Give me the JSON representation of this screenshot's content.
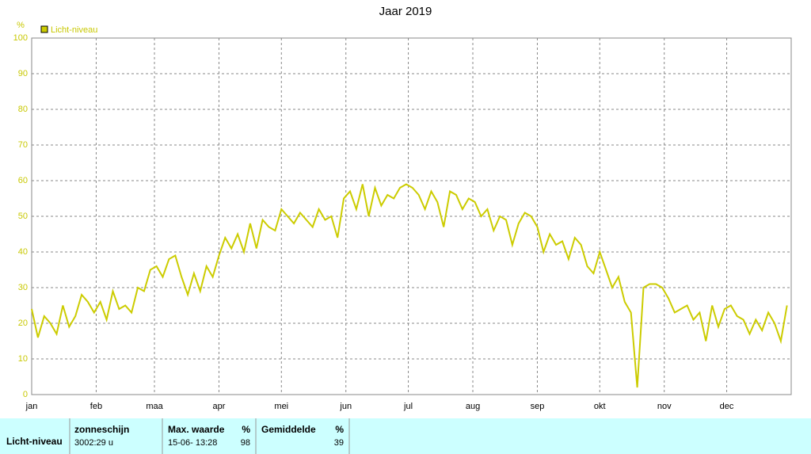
{
  "chart_data": {
    "type": "line",
    "title": "Jaar 2019",
    "y_unit": "%",
    "x": [
      1,
      4,
      7,
      10,
      13,
      16,
      19,
      22,
      25,
      28,
      31,
      34,
      37,
      40,
      43,
      46,
      49,
      52,
      55,
      58,
      61,
      64,
      67,
      70,
      73,
      76,
      79,
      82,
      85,
      88,
      91,
      94,
      97,
      100,
      103,
      106,
      109,
      112,
      115,
      118,
      121,
      124,
      127,
      130,
      133,
      136,
      139,
      142,
      145,
      148,
      151,
      154,
      157,
      160,
      163,
      166,
      169,
      172,
      175,
      178,
      181,
      184,
      187,
      190,
      193,
      196,
      199,
      202,
      205,
      208,
      211,
      214,
      217,
      220,
      223,
      226,
      229,
      232,
      235,
      238,
      241,
      244,
      247,
      250,
      253,
      256,
      259,
      262,
      265,
      268,
      271,
      274,
      277,
      280,
      283,
      286,
      289,
      292,
      295,
      298,
      301,
      304,
      307,
      310,
      313,
      316,
      319,
      322,
      325,
      328,
      331,
      334,
      337,
      340,
      343,
      346,
      349,
      352,
      355,
      358,
      361,
      364
    ],
    "series": [
      {
        "name": "Licht-niveau",
        "color": "#cccc00",
        "values": [
          24,
          16,
          22,
          20,
          17,
          25,
          19,
          22,
          28,
          26,
          23,
          26,
          21,
          29,
          24,
          25,
          23,
          30,
          29,
          35,
          36,
          33,
          38,
          39,
          33,
          28,
          34,
          29,
          36,
          33,
          39,
          44,
          41,
          45,
          40,
          48,
          41,
          49,
          47,
          46,
          52,
          50,
          48,
          51,
          49,
          47,
          52,
          49,
          50,
          44,
          55,
          57,
          52,
          59,
          50,
          58,
          53,
          56,
          55,
          58,
          59,
          58,
          56,
          52,
          57,
          54,
          47,
          57,
          56,
          52,
          55,
          54,
          50,
          52,
          46,
          50,
          49,
          42,
          48,
          51,
          50,
          47,
          40,
          45,
          42,
          43,
          38,
          44,
          42,
          36,
          34,
          40,
          35,
          30,
          33,
          26,
          23,
          2,
          30,
          31,
          31,
          30,
          27,
          23,
          24,
          25,
          21,
          23,
          15,
          25,
          19,
          24,
          25,
          22,
          21,
          17,
          21,
          18,
          23,
          20,
          15,
          25
        ]
      }
    ],
    "xlim": [
      1,
      366
    ],
    "xticks": [
      {
        "value": 1,
        "label": "jan"
      },
      {
        "value": 32,
        "label": "feb"
      },
      {
        "value": 60,
        "label": "maa"
      },
      {
        "value": 91,
        "label": "apr"
      },
      {
        "value": 121,
        "label": "mei"
      },
      {
        "value": 152,
        "label": "jun"
      },
      {
        "value": 182,
        "label": "jul"
      },
      {
        "value": 213,
        "label": "aug"
      },
      {
        "value": 244,
        "label": "sep"
      },
      {
        "value": 274,
        "label": "okt"
      },
      {
        "value": 305,
        "label": "nov"
      },
      {
        "value": 335,
        "label": "dec"
      }
    ],
    "ylim": [
      0,
      100
    ],
    "yticks": [
      0,
      10,
      20,
      30,
      40,
      50,
      60,
      70,
      80,
      90,
      100
    ],
    "grid": true
  },
  "summary_table": {
    "row_label": "Licht-niveau",
    "columns": [
      {
        "header": "zonneschijn",
        "value": "3002:29 u"
      },
      {
        "header": "Max. waarde",
        "unit": "%",
        "when": "15-06- 13:28",
        "value": "98"
      },
      {
        "header": "Gemiddelde",
        "unit": "%",
        "value": "39"
      }
    ]
  }
}
